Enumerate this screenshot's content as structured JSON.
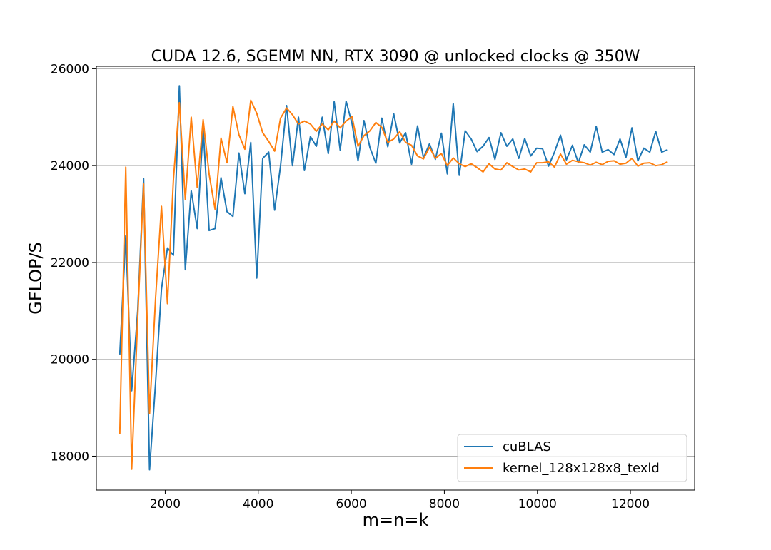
{
  "chart_data": {
    "type": "line",
    "title": "CUDA 12.6, SGEMM NN, RTX 3090 @ unlocked clocks @ 350W",
    "xlabel": "m=n=k",
    "ylabel": "GFLOP/S",
    "xlim": [
      520,
      13380
    ],
    "ylim": [
      17300,
      26050
    ],
    "xticks": [
      2000,
      4000,
      6000,
      8000,
      10000,
      12000
    ],
    "xtick_labels": [
      "2000",
      "4000",
      "6000",
      "8000",
      "10000",
      "12000"
    ],
    "yticks": [
      18000,
      20000,
      22000,
      24000,
      26000
    ],
    "ytick_labels": [
      "18000",
      "20000",
      "22000",
      "24000",
      "26000"
    ],
    "grid": "y",
    "legend_position": "lower-right",
    "series": [
      {
        "name": "cuBLAS",
        "color": "#1f77b4",
        "x": [
          1024,
          1152,
          1280,
          1408,
          1536,
          1664,
          1792,
          1920,
          2048,
          2176,
          2304,
          2432,
          2560,
          2688,
          2816,
          2944,
          3072,
          3200,
          3328,
          3456,
          3584,
          3712,
          3840,
          3968,
          4096,
          4224,
          4352,
          4480,
          4608,
          4736,
          4864,
          4992,
          5120,
          5248,
          5376,
          5504,
          5632,
          5760,
          5888,
          6016,
          6144,
          6272,
          6400,
          6528,
          6656,
          6784,
          6912,
          7040,
          7168,
          7296,
          7424,
          7552,
          7680,
          7808,
          7936,
          8064,
          8192,
          8320,
          8448,
          8576,
          8704,
          8832,
          8960,
          9088,
          9216,
          9344,
          9472,
          9600,
          9728,
          9856,
          9984,
          10112,
          10240,
          10368,
          10496,
          10624,
          10752,
          10880,
          11008,
          11136,
          11264,
          11392,
          11520,
          11648,
          11776,
          11904,
          12032,
          12160,
          12288,
          12416,
          12544,
          12672,
          12800
        ],
        "y": [
          20100,
          22550,
          19350,
          21000,
          23730,
          17720,
          19500,
          21450,
          22300,
          22150,
          25650,
          21850,
          23480,
          22700,
          24780,
          22660,
          22700,
          23750,
          23050,
          22950,
          24260,
          23420,
          24480,
          21680,
          24150,
          24280,
          23080,
          24000,
          25240,
          24000,
          25000,
          23900,
          24600,
          24400,
          25000,
          24250,
          25320,
          24320,
          25330,
          24870,
          24100,
          24930,
          24370,
          24050,
          24980,
          24390,
          25070,
          24470,
          24680,
          24030,
          24820,
          24160,
          24450,
          24130,
          24670,
          23830,
          25280,
          23800,
          24720,
          24550,
          24290,
          24400,
          24580,
          24130,
          24680,
          24400,
          24550,
          24150,
          24560,
          24200,
          24360,
          24350,
          23990,
          24280,
          24630,
          24120,
          24420,
          24060,
          24430,
          24280,
          24810,
          24280,
          24330,
          24230,
          24550,
          24170,
          24780,
          24100,
          24360,
          24280,
          24710,
          24280,
          24330
        ]
      },
      {
        "name": "kernel_128x128x8_texld",
        "color": "#ff7f0e",
        "x": [
          1024,
          1152,
          1280,
          1408,
          1536,
          1664,
          1792,
          1920,
          2048,
          2176,
          2304,
          2432,
          2560,
          2688,
          2816,
          2944,
          3072,
          3200,
          3328,
          3456,
          3584,
          3712,
          3840,
          3968,
          4096,
          4224,
          4352,
          4480,
          4608,
          4736,
          4864,
          4992,
          5120,
          5248,
          5376,
          5504,
          5632,
          5760,
          5888,
          6016,
          6144,
          6272,
          6400,
          6528,
          6656,
          6784,
          6912,
          7040,
          7168,
          7296,
          7424,
          7552,
          7680,
          7808,
          7936,
          8064,
          8192,
          8320,
          8448,
          8576,
          8704,
          8832,
          8960,
          9088,
          9216,
          9344,
          9472,
          9600,
          9728,
          9856,
          9984,
          10112,
          10240,
          10368,
          10496,
          10624,
          10752,
          10880,
          11008,
          11136,
          11264,
          11392,
          11520,
          11648,
          11776,
          11904,
          12032,
          12160,
          12288,
          12416,
          12544,
          12672,
          12800
        ],
        "y": [
          18450,
          23970,
          17730,
          20850,
          23620,
          18880,
          21250,
          23160,
          21150,
          23700,
          25300,
          23300,
          25000,
          23550,
          24950,
          23820,
          23100,
          24570,
          24060,
          25220,
          24640,
          24340,
          25350,
          25080,
          24680,
          24500,
          24300,
          24980,
          25190,
          25050,
          24860,
          24920,
          24860,
          24710,
          24860,
          24740,
          24920,
          24780,
          24920,
          25010,
          24400,
          24620,
          24720,
          24890,
          24790,
          24480,
          24550,
          24700,
          24480,
          24420,
          24200,
          24140,
          24380,
          24150,
          24250,
          24000,
          24160,
          24040,
          23980,
          24040,
          23960,
          23870,
          24040,
          23930,
          23910,
          24060,
          23980,
          23910,
          23930,
          23870,
          24060,
          24060,
          24080,
          23970,
          24240,
          24030,
          24110,
          24080,
          24060,
          24010,
          24070,
          24020,
          24090,
          24100,
          24030,
          24050,
          24150,
          23990,
          24050,
          24060,
          24000,
          24020,
          24080
        ]
      }
    ]
  }
}
